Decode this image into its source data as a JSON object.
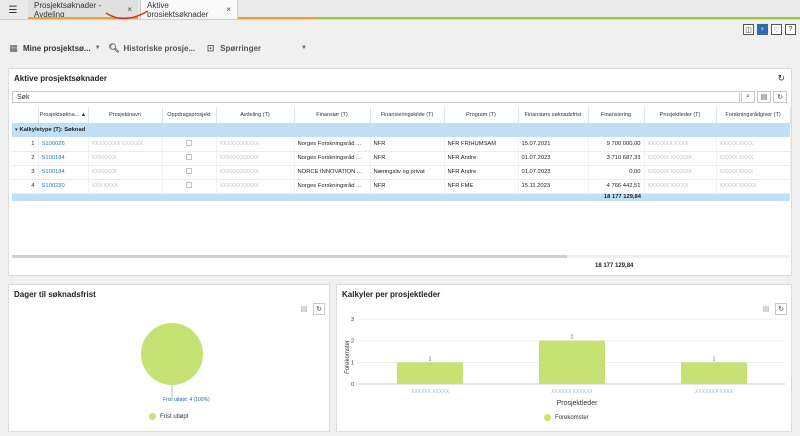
{
  "tabs": [
    {
      "label": "Prosjektsøknader - Avdeling",
      "close": "×"
    },
    {
      "label": "Aktive prosjektsøknader",
      "close": "×"
    }
  ],
  "toolbar_icons": [
    "layout-icon",
    "lightbulb-icon",
    "heart-icon",
    "help-icon"
  ],
  "subnav": [
    {
      "label": "Mine prosjektsø...",
      "icon": "grid-icon",
      "dropdown": "▼"
    },
    {
      "label": "Historiske prosje...",
      "icon": "search-icon",
      "dropdown": ""
    },
    {
      "label": "Spørringer",
      "icon": "query-icon",
      "dropdown": "▼"
    }
  ],
  "main": {
    "title": "Aktive prosjektsøknader",
    "search_placeholder": "Søk",
    "columns": [
      "",
      "Prosjektsøkna... ▲",
      "Prosjektnavn",
      "Oppdragsprosjekt",
      "Avdeling (T)",
      "Finansiør (T)",
      "Finansieringskilde (T)",
      "Program (T)",
      "Finansiørs søknadsfrist",
      "Finansiering",
      "Prosjektleder (T)",
      "Forskningsrådgiver (T)"
    ],
    "group_label": "Kalkyletype (T): Søknad",
    "rows": [
      {
        "idx": "1",
        "id": "S100026",
        "name": "XXXXXXXX XXXXXX",
        "avdeling": "XXXXXXXXXXX",
        "finansior": "Norges Forskningsråd ...",
        "kilde": "NFR",
        "program": "NFR FRIHUMSAM",
        "frist": "15.07.2021",
        "finansiering": "9 700 000,00",
        "leder": "XXXXXXX XXXX",
        "radgiver": "XXXXX XXXX"
      },
      {
        "idx": "2",
        "id": "S100184",
        "name": "XXXXXXX",
        "avdeling": "XXXXXXXXXXX",
        "finansior": "Norges Forskningsråd ...",
        "kilde": "NFR",
        "program": "NFR Andre",
        "frist": "01.07.2023",
        "finansiering": "3 710 687,33",
        "leder": "XXXXXX XXXXXX",
        "radgiver": "XXXXX XXXX"
      },
      {
        "idx": "3",
        "id": "S100184",
        "name": "XXXXXXX",
        "avdeling": "XXXXXXXXXXX",
        "finansior": "NORCE INNOVATION ...",
        "kilde": "Næringsliv og privat",
        "program": "NFR Andre",
        "frist": "01.07.2023",
        "finansiering": "0,00",
        "leder": "XXXXXX XXXXXX",
        "radgiver": "XXXXX XXXX"
      },
      {
        "idx": "4",
        "id": "S100230",
        "name": "XXX XXXX",
        "avdeling": "XXXXXXXXXXX",
        "finansior": "Norges Forskningsråd ...",
        "kilde": "NFR",
        "program": "NFR FME",
        "frist": "15.11.2023",
        "finansiering": "4 766 442,51",
        "leder": "XXXXXX XXXXX",
        "radgiver": "XXXXX XXXXX"
      }
    ],
    "group_sum": "18 177 129,84",
    "total": "18 177 129,84"
  },
  "left_chart": {
    "title": "Dager til søknadsfrist",
    "slice_label": "Frist utløpt: 4 (100%)",
    "legend": "Frist utløpt",
    "color": "#c6e174"
  },
  "chart_data": {
    "type": "bar",
    "title": "Kalkyler per prosjektleder",
    "xlabel": "Prosjektleder",
    "ylabel": "Forekomster",
    "categories": [
      "XXXXXX XXXXX",
      "XXXXXX XXXXXX",
      "XXXXXXX XXXX"
    ],
    "series": [
      {
        "name": "Forekomster",
        "values": [
          1,
          2,
          1
        ]
      }
    ],
    "ylim": [
      0,
      3
    ],
    "yticks": [
      0,
      1,
      2,
      3
    ],
    "color": "#c6e174",
    "legend": "bottom"
  }
}
